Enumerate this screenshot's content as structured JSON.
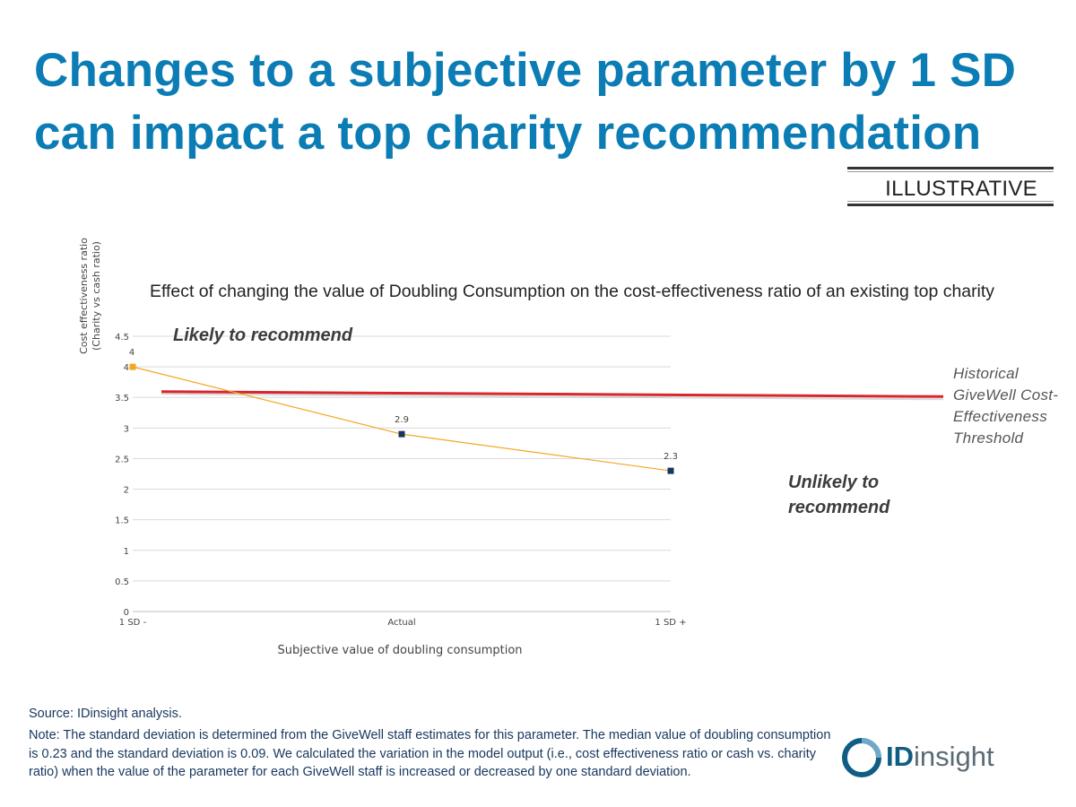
{
  "title": "Changes to a subjective parameter by 1 SD can impact a top charity recommendation",
  "badge": "ILLUSTRATIVE",
  "annotations": {
    "likely": "Likely to recommend",
    "unlikely": "Unlikely to recommend",
    "threshold": "Historical GiveWell Cost-Effectiveness Threshold"
  },
  "source": "Source: IDinsight analysis.",
  "note": "Note: The standard deviation is determined from the GiveWell staff estimates for this parameter. The median value of doubling consumption is 0.23 and the standard deviation is 0.09. We calculated the variation in the model output (i.e., cost effectiveness ratio or cash vs. charity ratio) when the value of the parameter for each GiveWell staff is increased or decreased by one standard deviation.",
  "logo": {
    "bold": "ID",
    "rest": "insight"
  },
  "colors": {
    "title": "#0b7db4",
    "line": "#f5a623",
    "marker": "#17375e",
    "first_marker": "#f5a623",
    "threshold": "#d9262c",
    "grid": "#d9d9d9"
  },
  "chart_data": {
    "type": "line",
    "title": "Effect of changing the value of Doubling Consumption on the cost-effectiveness ratio of an existing top charity",
    "xlabel": "Subjective value of doubling consumption",
    "ylabel": [
      "Cost effectiveness ratio",
      "(Charity vs cash ratio)"
    ],
    "categories": [
      "1 SD -",
      "Actual",
      "1 SD +"
    ],
    "series": [
      {
        "name": "Cost effectiveness ratio",
        "values": [
          4,
          2.9,
          2.3
        ],
        "data_labels": [
          "4",
          "2.9",
          "2.3"
        ]
      }
    ],
    "threshold": {
      "name": "Historical GiveWell Cost-Effectiveness Threshold",
      "value": 3.55
    },
    "ylim": [
      0,
      4.5
    ],
    "yticks": [
      0,
      0.5,
      1,
      1.5,
      2,
      2.5,
      3,
      3.5,
      4,
      4.5
    ],
    "ytick_labels": [
      "0",
      "0.5",
      "1",
      "1.5",
      "2",
      "2.5",
      "3",
      "3.5",
      "4",
      "4.5"
    ],
    "grid": true
  }
}
